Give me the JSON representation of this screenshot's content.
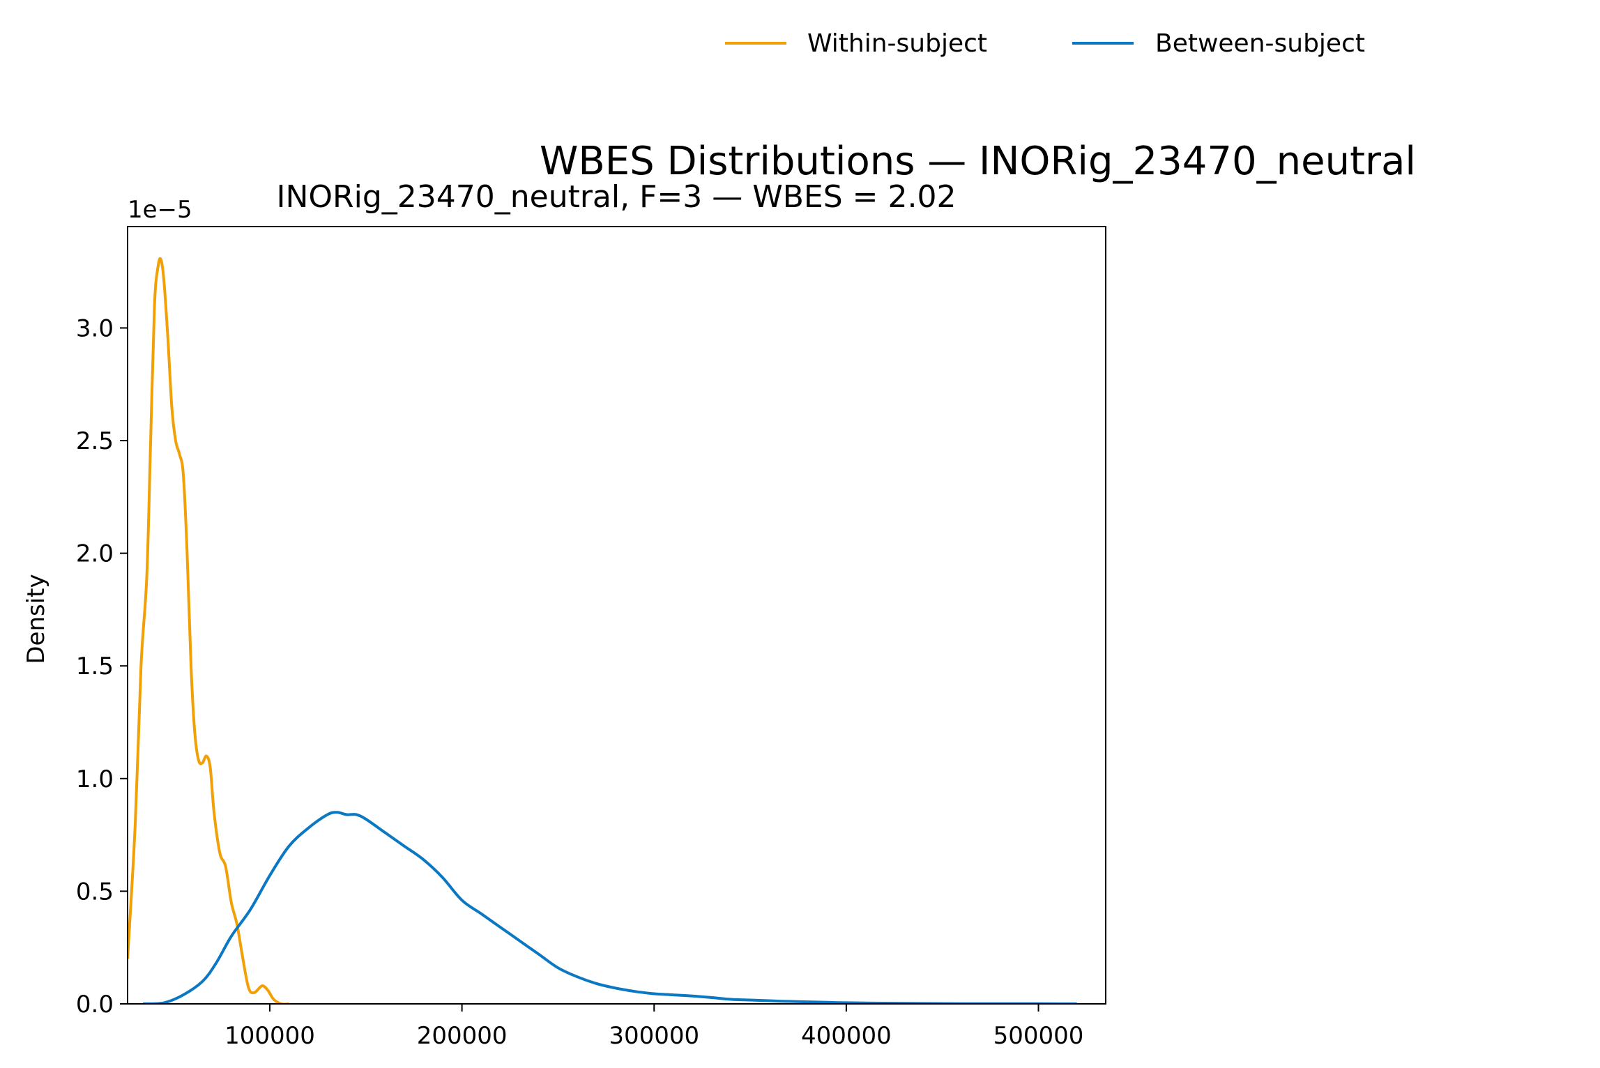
{
  "figure": {
    "suptitle": "WBES Distributions — INORig_23470_neutral"
  },
  "legend": {
    "placement": "top-center",
    "entries": [
      {
        "name": "Within-subject",
        "color": "#f2a007"
      },
      {
        "name": "Between-subject",
        "color": "#0a78c2"
      }
    ]
  },
  "chart_data": {
    "type": "line",
    "title": "INORig_23470_neutral, F=3 — WBES = 2.02",
    "xlabel": "",
    "ylabel": "Density",
    "y_offset_label": "1e−5",
    "xlim": [
      26000,
      535000
    ],
    "ylim": [
      0,
      3.45
    ],
    "y_scale_note": "values in units of 1e−5",
    "xticks": [
      100000,
      200000,
      300000,
      400000,
      500000
    ],
    "xtick_labels": [
      "100000",
      "200000",
      "300000",
      "400000",
      "500000"
    ],
    "yticks": [
      0.0,
      0.5,
      1.0,
      1.5,
      2.0,
      2.5,
      3.0
    ],
    "ytick_labels": [
      "0.0",
      "0.5",
      "1.0",
      "1.5",
      "2.0",
      "2.5",
      "3.0"
    ],
    "grid": false,
    "series": [
      {
        "name": "Within-subject",
        "color": "#f2a007",
        "points": [
          [
            26000,
            0.2
          ],
          [
            30000,
            0.8
          ],
          [
            33000,
            1.5
          ],
          [
            36000,
            1.9
          ],
          [
            38000,
            2.5
          ],
          [
            40000,
            3.1
          ],
          [
            42000,
            3.28
          ],
          [
            43500,
            3.3
          ],
          [
            45000,
            3.2
          ],
          [
            47000,
            2.95
          ],
          [
            49000,
            2.65
          ],
          [
            51000,
            2.5
          ],
          [
            53000,
            2.44
          ],
          [
            55000,
            2.35
          ],
          [
            57000,
            2.0
          ],
          [
            59000,
            1.5
          ],
          [
            61000,
            1.2
          ],
          [
            63000,
            1.08
          ],
          [
            65000,
            1.07
          ],
          [
            67000,
            1.1
          ],
          [
            69000,
            1.05
          ],
          [
            71000,
            0.85
          ],
          [
            74000,
            0.67
          ],
          [
            77000,
            0.61
          ],
          [
            80000,
            0.45
          ],
          [
            83000,
            0.35
          ],
          [
            86000,
            0.2
          ],
          [
            89000,
            0.07
          ],
          [
            92000,
            0.05
          ],
          [
            96000,
            0.08
          ],
          [
            99000,
            0.06
          ],
          [
            102000,
            0.02
          ],
          [
            106000,
            0.0
          ],
          [
            110000,
            0.0
          ]
        ]
      },
      {
        "name": "Between-subject",
        "color": "#0a78c2",
        "points": [
          [
            34000,
            0.0
          ],
          [
            45000,
            0.005
          ],
          [
            55000,
            0.04
          ],
          [
            65000,
            0.1
          ],
          [
            72000,
            0.18
          ],
          [
            80000,
            0.3
          ],
          [
            90000,
            0.42
          ],
          [
            100000,
            0.57
          ],
          [
            110000,
            0.7
          ],
          [
            120000,
            0.78
          ],
          [
            130000,
            0.84
          ],
          [
            135000,
            0.85
          ],
          [
            140000,
            0.84
          ],
          [
            145000,
            0.84
          ],
          [
            150000,
            0.82
          ],
          [
            160000,
            0.76
          ],
          [
            170000,
            0.7
          ],
          [
            180000,
            0.64
          ],
          [
            190000,
            0.56
          ],
          [
            200000,
            0.46
          ],
          [
            210000,
            0.4
          ],
          [
            220000,
            0.34
          ],
          [
            230000,
            0.28
          ],
          [
            240000,
            0.22
          ],
          [
            250000,
            0.16
          ],
          [
            260000,
            0.12
          ],
          [
            270000,
            0.09
          ],
          [
            280000,
            0.07
          ],
          [
            290000,
            0.055
          ],
          [
            300000,
            0.045
          ],
          [
            310000,
            0.04
          ],
          [
            320000,
            0.035
          ],
          [
            330000,
            0.028
          ],
          [
            340000,
            0.02
          ],
          [
            350000,
            0.017
          ],
          [
            360000,
            0.014
          ],
          [
            370000,
            0.011
          ],
          [
            380000,
            0.009
          ],
          [
            390000,
            0.007
          ],
          [
            400000,
            0.005
          ],
          [
            420000,
            0.003
          ],
          [
            440000,
            0.002
          ],
          [
            460000,
            0.001
          ],
          [
            480000,
            0.001
          ],
          [
            500000,
            0.0005
          ],
          [
            520000,
            0.0
          ]
        ]
      }
    ]
  }
}
